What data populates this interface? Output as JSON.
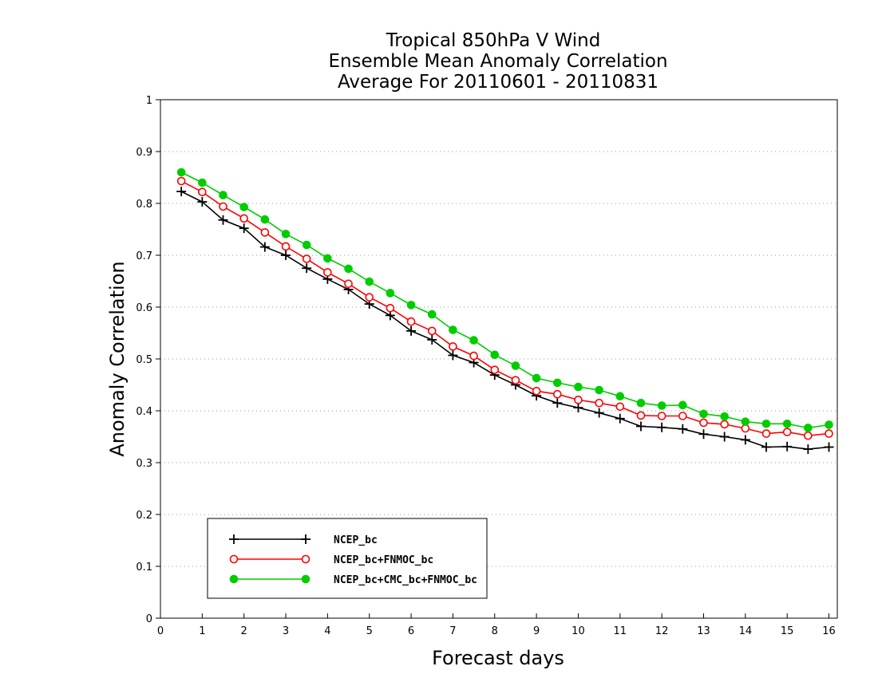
{
  "chart_data": {
    "type": "line",
    "title": [
      "Tropical 850hPa V Wind",
      "Ensemble Mean Anomaly Correlation",
      "Average For 20110601 - 20110831"
    ],
    "xlabel": "Forecast days",
    "ylabel": "Anomaly Correlation",
    "xlim": [
      0,
      16.2
    ],
    "ylim": [
      0,
      1
    ],
    "xticks": [
      0,
      1,
      2,
      3,
      4,
      5,
      6,
      7,
      8,
      9,
      10,
      11,
      12,
      13,
      14,
      15,
      16
    ],
    "xtick_labels": [
      "0",
      "1",
      "2",
      "3",
      "4",
      "5",
      "6",
      "7",
      "8",
      "9",
      "10",
      "11",
      "12",
      "13",
      "14",
      "15",
      "16"
    ],
    "yticks": [
      0,
      0.1,
      0.2,
      0.3,
      0.4,
      0.5,
      0.6,
      0.7,
      0.8,
      0.9,
      1
    ],
    "ytick_labels": [
      "0",
      "0.1",
      "0.2",
      "0.3",
      "0.4",
      "0.5",
      "0.6",
      "0.7",
      "0.8",
      "0.9",
      "1"
    ],
    "grid": "dotted horizontal",
    "legend_position": "bottom-left",
    "x": [
      0.5,
      1.0,
      1.5,
      2.0,
      2.5,
      3.0,
      3.5,
      4.0,
      4.5,
      5.0,
      5.5,
      6.0,
      6.5,
      7.0,
      7.5,
      8.0,
      8.5,
      9.0,
      9.5,
      10.0,
      10.5,
      11.0,
      11.5,
      12.0,
      12.5,
      13.0,
      13.5,
      14.0,
      14.5,
      15.0,
      15.5,
      16.0
    ],
    "series": [
      {
        "name": "NCEP_bc",
        "color": "#000000",
        "marker": "plus",
        "values": [
          0.823,
          0.803,
          0.768,
          0.752,
          0.716,
          0.7,
          0.675,
          0.654,
          0.634,
          0.606,
          0.584,
          0.554,
          0.537,
          0.507,
          0.493,
          0.469,
          0.45,
          0.429,
          0.415,
          0.406,
          0.396,
          0.385,
          0.37,
          0.368,
          0.365,
          0.355,
          0.35,
          0.344,
          0.33,
          0.331,
          0.326,
          0.33
        ]
      },
      {
        "name": "NCEP_bc+FNMOC_bc",
        "color": "#ff0000",
        "marker": "open-circle",
        "values": [
          0.843,
          0.822,
          0.794,
          0.771,
          0.744,
          0.717,
          0.693,
          0.667,
          0.645,
          0.619,
          0.598,
          0.572,
          0.554,
          0.524,
          0.506,
          0.479,
          0.459,
          0.438,
          0.432,
          0.421,
          0.415,
          0.408,
          0.391,
          0.39,
          0.39,
          0.377,
          0.374,
          0.366,
          0.356,
          0.359,
          0.352,
          0.356
        ]
      },
      {
        "name": "NCEP_bc+CMC_bc+FNMOC_bc",
        "color": "#00cc00",
        "marker": "filled-circle",
        "values": [
          0.86,
          0.84,
          0.816,
          0.793,
          0.769,
          0.741,
          0.72,
          0.694,
          0.674,
          0.649,
          0.627,
          0.604,
          0.586,
          0.556,
          0.536,
          0.508,
          0.487,
          0.463,
          0.454,
          0.446,
          0.44,
          0.428,
          0.415,
          0.41,
          0.411,
          0.394,
          0.389,
          0.379,
          0.375,
          0.375,
          0.367,
          0.373
        ]
      }
    ]
  }
}
